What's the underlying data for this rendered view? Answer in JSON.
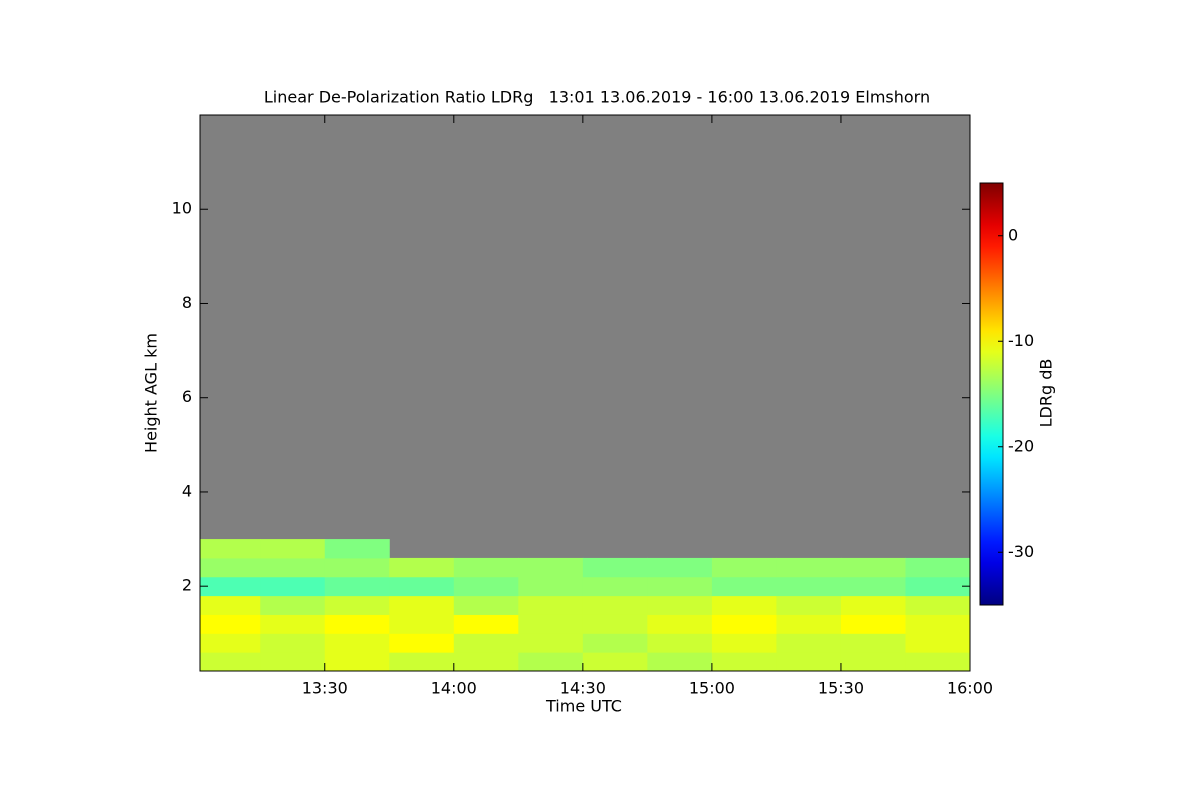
{
  "chart_data": {
    "type": "heatmap",
    "title": "Linear De-Polarization Ratio LDRg   13:01 13.06.2019 - 16:00 13.06.2019 Elmshorn",
    "xlabel": "Time UTC",
    "ylabel": "Height AGL km",
    "colorbar_label": "LDRg dB",
    "colormap": "jet",
    "background": "#808080",
    "xlim": [
      781,
      960
    ],
    "xticks": [
      {
        "value": 810,
        "label": "13:30"
      },
      {
        "value": 840,
        "label": "14:00"
      },
      {
        "value": 870,
        "label": "14:30"
      },
      {
        "value": 900,
        "label": "15:00"
      },
      {
        "value": 930,
        "label": "15:30"
      },
      {
        "value": 960,
        "label": "16:00"
      }
    ],
    "ylim": [
      0.2,
      12
    ],
    "yticks": [
      2,
      4,
      6,
      8,
      10
    ],
    "clim": [
      -35,
      5
    ],
    "cticks": [
      0,
      -10,
      -20,
      -30
    ],
    "xbins": [
      781,
      795,
      810,
      825,
      840,
      855,
      870,
      885,
      900,
      915,
      930,
      945,
      960
    ],
    "ybins": [
      0.2,
      0.6,
      1.0,
      1.4,
      1.8,
      2.2,
      2.6,
      3.0
    ],
    "values": [
      [
        -12,
        -12,
        -11,
        -12,
        -12,
        -13,
        -12,
        -13,
        -12,
        -12,
        -12,
        -12
      ],
      [
        -11,
        -12,
        -11,
        -10,
        -12,
        -12,
        -13,
        -12,
        -11,
        -12,
        -12,
        -11
      ],
      [
        -10,
        -11,
        -10,
        -11,
        -10,
        -12,
        -12,
        -11,
        -10,
        -11,
        -10,
        -11
      ],
      [
        -11,
        -13,
        -12,
        -11,
        -13,
        -12,
        -12,
        -12,
        -11,
        -12,
        -11,
        -12
      ],
      [
        -17,
        -17,
        -16,
        -16,
        -15,
        -14,
        -14,
        -14,
        -15,
        -15,
        -15,
        -16
      ],
      [
        -14,
        -14,
        -14,
        -13,
        -14,
        -14,
        -15,
        -15,
        -14,
        -14,
        -14,
        -15
      ],
      [
        -13,
        -13,
        -15,
        null,
        null,
        null,
        null,
        null,
        null,
        null,
        null,
        null
      ]
    ]
  }
}
